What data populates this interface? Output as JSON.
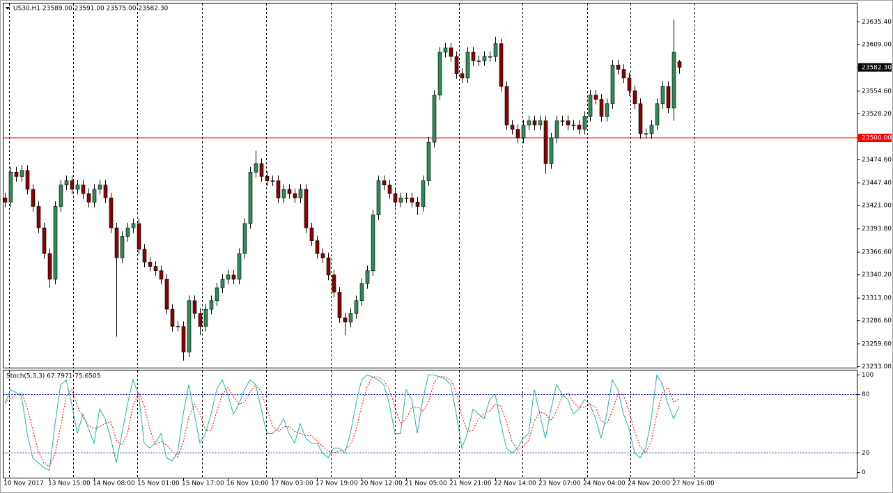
{
  "chart_data": [
    {
      "type": "candlestick",
      "title": "US30,H1  23589.00 23591.00 23575.00 23582.30",
      "categories": [
        "10 Nov 2017",
        null,
        null,
        null,
        null,
        null,
        null,
        null,
        "13 Nov 15:00",
        null,
        null,
        null,
        null,
        null,
        null,
        null,
        "14 Nov 08:00",
        null,
        null,
        null,
        null,
        null,
        null,
        null,
        "15 Nov 01:00",
        null,
        null,
        null,
        null,
        null,
        null,
        null,
        "15 Nov 17:00",
        null,
        null,
        null,
        null,
        null,
        null,
        null,
        "16 Nov 10:00",
        null,
        null,
        null,
        null,
        null,
        null,
        null,
        "17 Nov 03:00",
        null,
        null,
        null,
        null,
        null,
        null,
        null,
        "17 Nov 19:00",
        null,
        null,
        null,
        null,
        null,
        null,
        null,
        "20 Nov 12:00",
        null,
        null,
        null,
        null,
        null,
        null,
        null,
        "21 Nov 05:00",
        null,
        null,
        null,
        null,
        null,
        null,
        null,
        "21 Nov 21:00",
        null,
        null,
        null,
        null,
        null,
        null,
        null,
        "22 Nov 14:00",
        null,
        null,
        null,
        null,
        null,
        null,
        null,
        "23 Nov 07:00",
        null,
        null,
        null,
        null,
        null,
        null,
        null,
        "24 Nov 04:00",
        null,
        null,
        null,
        null,
        null,
        null,
        null,
        "24 Nov 20:00",
        null,
        null,
        null,
        null,
        null,
        null,
        null,
        "27 Nov 16:00",
        null
      ],
      "open": [
        23430,
        23425,
        23460,
        23455,
        23462,
        23440,
        23420,
        23395,
        23365,
        23335,
        23420,
        23445,
        23450,
        23440,
        23445,
        23435,
        23425,
        23440,
        23445,
        23430,
        23395,
        23360,
        23385,
        23395,
        23400,
        23370,
        23355,
        23350,
        23345,
        23335,
        23300,
        23280,
        23280,
        23250,
        23310,
        23295,
        23280,
        23300,
        23310,
        23325,
        23335,
        23340,
        23335,
        23365,
        23400,
        23460,
        23470,
        23455,
        23450,
        23450,
        23430,
        23440,
        23435,
        23430,
        23440,
        23395,
        23380,
        23365,
        23360,
        23340,
        23320,
        23290,
        23285,
        23295,
        23310,
        23330,
        23345,
        23410,
        23450,
        23445,
        23435,
        23425,
        23430,
        23430,
        23425,
        23420,
        23450,
        23495,
        23550,
        23600,
        23605,
        23595,
        23575,
        23570,
        23600,
        23590,
        23590,
        23595,
        23595,
        23610,
        23560,
        23515,
        23510,
        23500,
        23515,
        23520,
        23515,
        23520,
        23470,
        23500,
        23520,
        23520,
        23515,
        23515,
        23510,
        23525,
        23550,
        23545,
        23525,
        23540,
        23585,
        23580,
        23570,
        23555,
        23540,
        23505,
        23505,
        23515,
        23540,
        23560,
        23535,
        23589
      ],
      "high": [
        23436,
        23466,
        23466,
        23468,
        23468,
        23446,
        23426,
        23401,
        23371,
        23426,
        23451,
        23456,
        23456,
        23451,
        23451,
        23441,
        23446,
        23451,
        23451,
        23436,
        23401,
        23391,
        23401,
        23406,
        23406,
        23376,
        23361,
        23356,
        23351,
        23341,
        23306,
        23286,
        23286,
        23316,
        23316,
        23301,
        23306,
        23316,
        23331,
        23341,
        23346,
        23346,
        23371,
        23406,
        23466,
        23485,
        23476,
        23461,
        23456,
        23456,
        23446,
        23446,
        23441,
        23446,
        23446,
        23401,
        23386,
        23371,
        23366,
        23346,
        23326,
        23296,
        23301,
        23316,
        23336,
        23351,
        23416,
        23456,
        23456,
        23451,
        23441,
        23436,
        23436,
        23436,
        23431,
        23456,
        23501,
        23556,
        23606,
        23611,
        23611,
        23601,
        23581,
        23606,
        23606,
        23596,
        23601,
        23601,
        23618,
        23616,
        23566,
        23521,
        23516,
        23521,
        23526,
        23526,
        23526,
        23526,
        23506,
        23526,
        23526,
        23526,
        23521,
        23521,
        23531,
        23556,
        23556,
        23551,
        23546,
        23591,
        23591,
        23586,
        23576,
        23561,
        23546,
        23511,
        23521,
        23546,
        23566,
        23566,
        23638,
        23591
      ],
      "low": [
        23419,
        23419,
        23449,
        23449,
        23434,
        23414,
        23389,
        23359,
        23325,
        23329,
        23414,
        23439,
        23434,
        23434,
        23429,
        23419,
        23419,
        23434,
        23424,
        23389,
        23268,
        23354,
        23379,
        23389,
        23364,
        23349,
        23344,
        23339,
        23329,
        23294,
        23274,
        23274,
        23240,
        23244,
        23289,
        23270,
        23274,
        23294,
        23304,
        23319,
        23329,
        23329,
        23329,
        23359,
        23394,
        23454,
        23449,
        23444,
        23444,
        23424,
        23424,
        23429,
        23424,
        23424,
        23389,
        23374,
        23359,
        23354,
        23334,
        23314,
        23284,
        23270,
        23279,
        23289,
        23304,
        23324,
        23339,
        23404,
        23439,
        23429,
        23419,
        23419,
        23424,
        23419,
        23410,
        23414,
        23444,
        23489,
        23544,
        23594,
        23589,
        23569,
        23564,
        23564,
        23584,
        23584,
        23584,
        23589,
        23589,
        23554,
        23509,
        23504,
        23494,
        23494,
        23509,
        23509,
        23509,
        23458,
        23464,
        23494,
        23514,
        23509,
        23509,
        23504,
        23504,
        23519,
        23539,
        23519,
        23519,
        23534,
        23574,
        23564,
        23549,
        23534,
        23499,
        23499,
        23499,
        23509,
        23534,
        23529,
        23520,
        23575
      ],
      "close": [
        23425,
        23460,
        23455,
        23462,
        23440,
        23420,
        23395,
        23365,
        23335,
        23420,
        23445,
        23450,
        23440,
        23445,
        23435,
        23425,
        23440,
        23445,
        23430,
        23395,
        23360,
        23385,
        23395,
        23400,
        23370,
        23355,
        23350,
        23345,
        23335,
        23300,
        23280,
        23280,
        23250,
        23310,
        23295,
        23280,
        23300,
        23310,
        23325,
        23335,
        23340,
        23335,
        23365,
        23400,
        23460,
        23470,
        23455,
        23450,
        23450,
        23430,
        23440,
        23435,
        23430,
        23440,
        23395,
        23380,
        23365,
        23360,
        23340,
        23320,
        23290,
        23285,
        23295,
        23310,
        23330,
        23345,
        23410,
        23450,
        23445,
        23435,
        23425,
        23430,
        23430,
        23425,
        23420,
        23450,
        23495,
        23550,
        23600,
        23605,
        23595,
        23575,
        23570,
        23600,
        23590,
        23590,
        23595,
        23595,
        23610,
        23560,
        23515,
        23510,
        23500,
        23515,
        23520,
        23515,
        23520,
        23470,
        23500,
        23520,
        23520,
        23515,
        23515,
        23510,
        23525,
        23550,
        23545,
        23525,
        23540,
        23585,
        23580,
        23570,
        23555,
        23540,
        23505,
        23505,
        23515,
        23540,
        23560,
        23535,
        23600,
        23582.3
      ],
      "up_color": "#2e8b57",
      "down_color": "#8b0000",
      "ylim": [
        23231.4,
        23657.3
      ],
      "yticks": [
        {
          "value": 23635.4,
          "label": "23635.40"
        },
        {
          "value": 23609,
          "label": "23609.00"
        },
        {
          "value": 23582.3,
          "label": "23582.30"
        },
        {
          "value": 23554.6,
          "label": "23554.60"
        },
        {
          "value": 23528.2,
          "label": "23528.20"
        },
        {
          "value": 23500,
          "label": "23500.00"
        },
        {
          "value": 23474.6,
          "label": "23474.60"
        },
        {
          "value": 23447.4,
          "label": "23447.40"
        },
        {
          "value": 23421,
          "label": "23421.00"
        },
        {
          "value": 23393.8,
          "label": "23393.80"
        },
        {
          "value": 23366.6,
          "label": "23366.60"
        },
        {
          "value": 23340.2,
          "label": "23340.20"
        },
        {
          "value": 23313,
          "label": "23313.00"
        },
        {
          "value": 23286.6,
          "label": "23286.60"
        },
        {
          "value": 23259.6,
          "label": "23259.60"
        },
        {
          "value": 23233,
          "label": "23233.00"
        }
      ],
      "last_price": {
        "value": 23582.3,
        "label": "23582.30"
      },
      "level": {
        "value": 23500,
        "label": "23500.00",
        "color": "#ff0000"
      }
    },
    {
      "type": "line",
      "title": "Stoch(5,3,3) 67.7971 75.6505",
      "series": [
        {
          "color": "#20b2aa",
          "values": [
            70,
            85,
            82,
            78,
            40,
            15,
            10,
            5,
            2,
            50,
            90,
            95,
            70,
            40,
            60,
            45,
            30,
            65,
            55,
            35,
            10,
            40,
            70,
            95,
            80,
            30,
            25,
            30,
            40,
            15,
            12,
            20,
            60,
            90,
            60,
            30,
            40,
            60,
            85,
            95,
            80,
            60,
            70,
            85,
            95,
            90,
            65,
            40,
            40,
            45,
            55,
            40,
            30,
            50,
            35,
            30,
            30,
            20,
            15,
            25,
            25,
            20,
            40,
            70,
            95,
            100,
            98,
            95,
            90,
            70,
            40,
            40,
            85,
            75,
            40,
            75,
            100,
            100,
            98,
            96,
            90,
            60,
            25,
            40,
            65,
            60,
            55,
            75,
            80,
            50,
            25,
            20,
            25,
            35,
            40,
            85,
            60,
            35,
            65,
            90,
            80,
            75,
            60,
            65,
            75,
            70,
            55,
            35,
            60,
            95,
            85,
            60,
            45,
            20,
            15,
            25,
            55,
            100,
            90,
            70,
            55,
            67.7971
          ]
        },
        {
          "color": "#ff0000",
          "dashed": true,
          "values": [
            72,
            76,
            79,
            82,
            67,
            44,
            22,
            10,
            6,
            19,
            47,
            78,
            85,
            68,
            57,
            48,
            45,
            47,
            50,
            52,
            33,
            28,
            40,
            68,
            82,
            68,
            45,
            28,
            32,
            28,
            22,
            16,
            31,
            57,
            70,
            60,
            43,
            43,
            62,
            80,
            87,
            78,
            70,
            72,
            83,
            90,
            83,
            65,
            48,
            42,
            47,
            47,
            42,
            40,
            38,
            38,
            32,
            27,
            22,
            20,
            22,
            23,
            28,
            43,
            68,
            88,
            98,
            98,
            94,
            85,
            67,
            50,
            55,
            67,
            67,
            63,
            72,
            92,
            99,
            98,
            95,
            82,
            58,
            42,
            43,
            55,
            60,
            63,
            70,
            68,
            52,
            32,
            23,
            27,
            33,
            53,
            62,
            60,
            53,
            63,
            78,
            82,
            72,
            67,
            67,
            70,
            67,
            53,
            50,
            63,
            80,
            80,
            63,
            42,
            27,
            20,
            32,
            60,
            82,
            87,
            72,
            75.6505
          ]
        }
      ],
      "ylim": [
        -5.7,
        105
      ],
      "yticks": [
        100,
        80,
        20,
        0
      ],
      "levels": [
        80,
        20
      ]
    }
  ]
}
